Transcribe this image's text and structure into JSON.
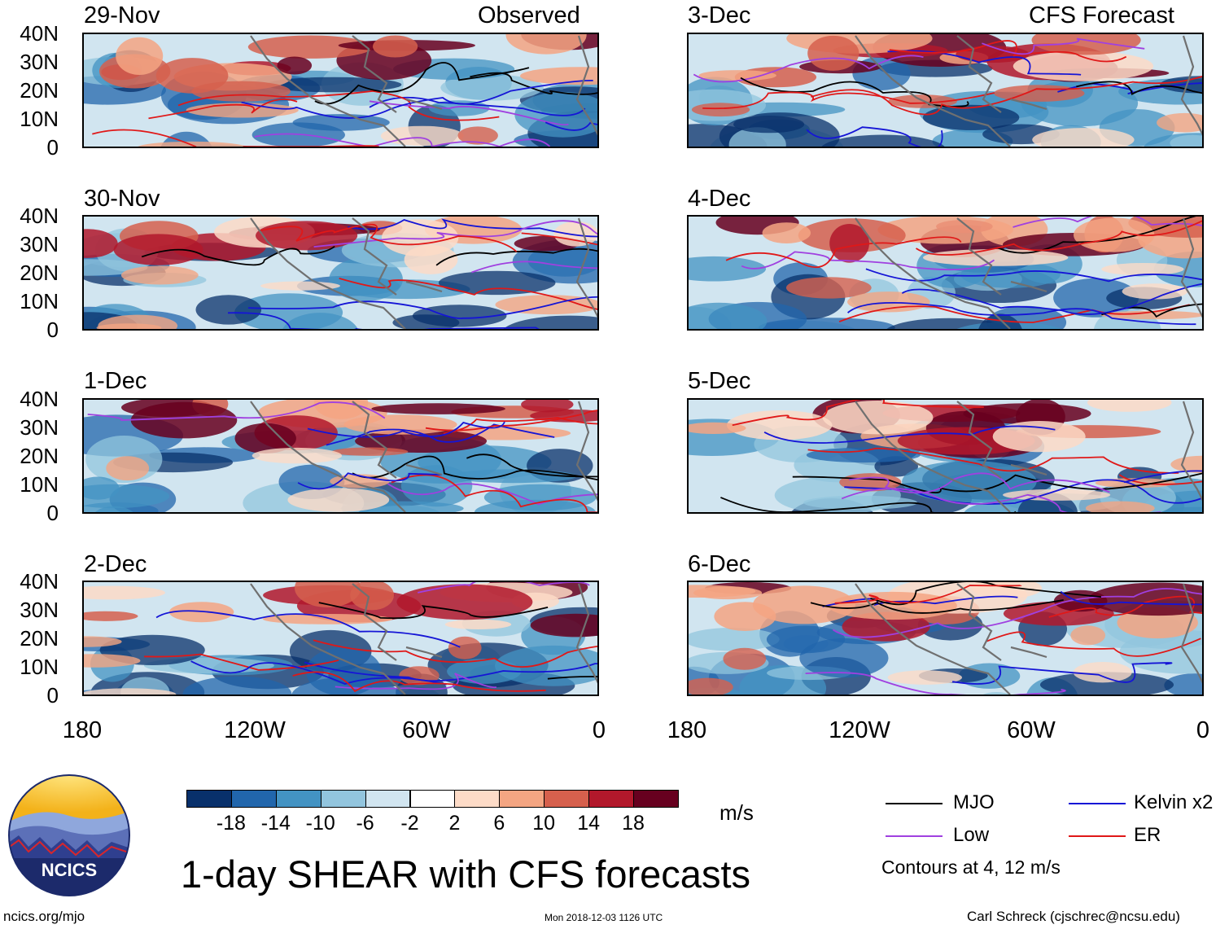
{
  "column_labels": {
    "left": "Observed",
    "right": "CFS Forecast"
  },
  "panels_left": [
    "29-Nov",
    "30-Nov",
    "1-Dec",
    "2-Dec"
  ],
  "panels_right": [
    "3-Dec",
    "4-Dec",
    "5-Dec",
    "6-Dec"
  ],
  "lat_labels": [
    "40N",
    "30N",
    "20N",
    "10N",
    "0"
  ],
  "lon_labels": [
    "180",
    "120W",
    "60W",
    "0"
  ],
  "colorbar": {
    "colors": [
      "#08306b",
      "#2166ac",
      "#4393c3",
      "#92c5de",
      "#d1e5f0",
      "#ffffff",
      "#fddbc7",
      "#f4a582",
      "#d6604d",
      "#b2182b",
      "#67001f"
    ],
    "ticks": [
      "-18",
      "-14",
      "-10",
      "-6",
      "-2",
      "2",
      "6",
      "10",
      "14",
      "18"
    ],
    "units": "m/s"
  },
  "legend": {
    "mjo": {
      "label": "MJO",
      "color": "#000000"
    },
    "kelvin": {
      "label": "Kelvin x2",
      "color": "#1515d6"
    },
    "low": {
      "label": "Low",
      "color": "#a040e0"
    },
    "er": {
      "label": "ER",
      "color": "#e01818"
    },
    "note": "Contours at 4, 12 m/s"
  },
  "logo_text": "NCICS",
  "title": "1-day SHEAR with CFS forecasts",
  "footer": {
    "left": "ncics.org/mjo",
    "center": "Mon 2018-12-03 1126 UTC",
    "right": "Carl Schreck (cjschrec@ncsu.edu)"
  }
}
